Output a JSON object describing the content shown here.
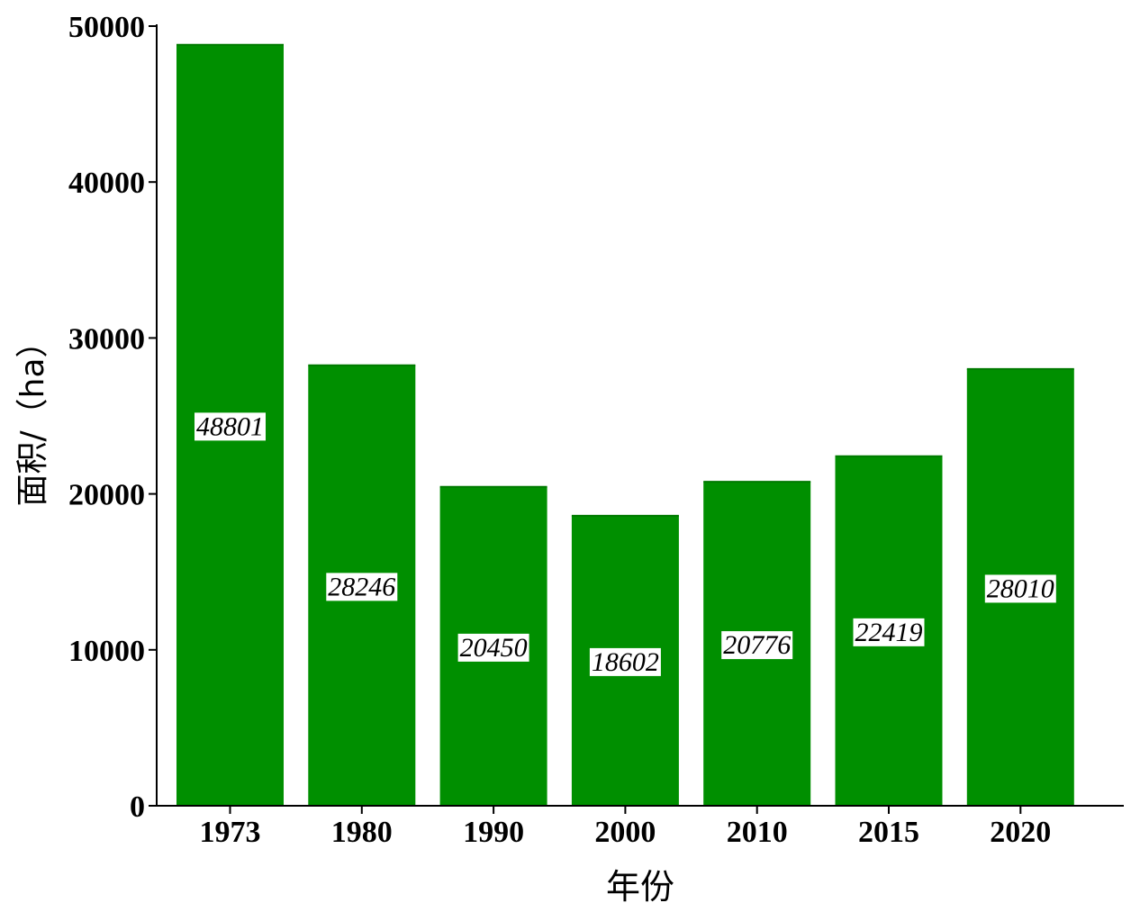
{
  "chart_data": {
    "type": "bar",
    "categories": [
      "1973",
      "1980",
      "1990",
      "2000",
      "2010",
      "2015",
      "2020"
    ],
    "values": [
      48801,
      28246,
      20450,
      18602,
      20776,
      22419,
      28010
    ],
    "data_labels": [
      "48801",
      "28246",
      "20450",
      "18602",
      "20776",
      "22419",
      "28010"
    ],
    "xlabel": "年份",
    "ylabel": "面积/（ha）",
    "ylim": [
      0,
      50000
    ],
    "yticks": [
      0,
      10000,
      20000,
      30000,
      40000,
      50000
    ],
    "ytick_labels": [
      "0",
      "10000",
      "20000",
      "30000",
      "40000",
      "50000"
    ],
    "bar_color": "#008F00",
    "label_background": "#ffffff",
    "grid": false,
    "legend": "none"
  }
}
